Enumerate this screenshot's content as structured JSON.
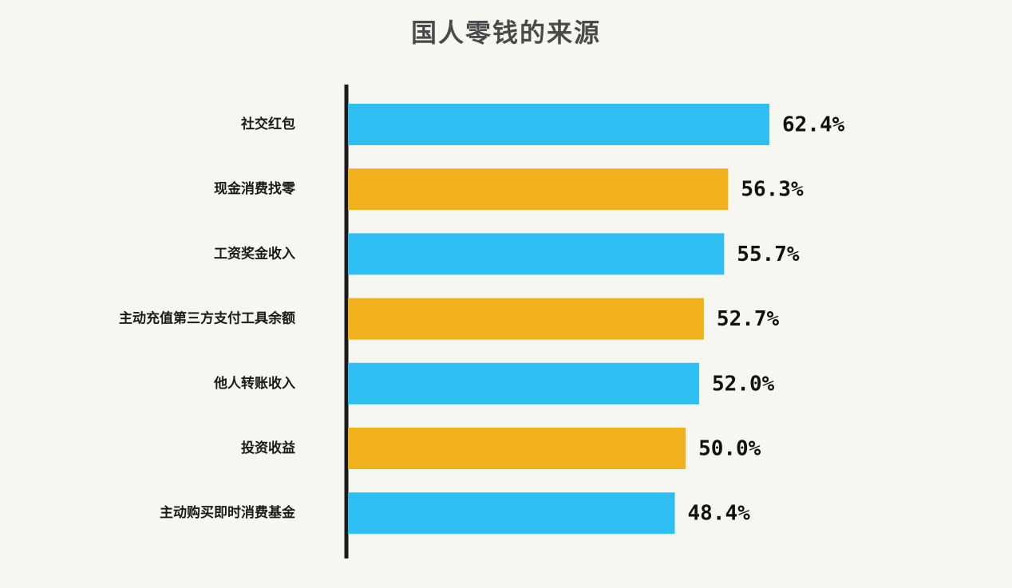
{
  "chart_data": {
    "type": "bar",
    "orientation": "horizontal",
    "title": "国人零钱的来源",
    "categories": [
      "社交红包",
      "现金消费找零",
      "工资奖金收入",
      "主动充值第三方支付工具余额",
      "他人转账收入",
      "投资收益",
      "主动购买即时消费基金"
    ],
    "values": [
      62.4,
      56.3,
      55.7,
      52.7,
      52.0,
      50.0,
      48.4
    ],
    "value_labels": [
      "62.4%",
      "56.3%",
      "55.7%",
      "52.7%",
      "52.0%",
      "50.0%",
      "48.4%"
    ],
    "unit": "%",
    "bar_colors": [
      "#2ebef2",
      "#f0b11c",
      "#2ebef2",
      "#f0b11c",
      "#2ebef2",
      "#f0b11c",
      "#2ebef2"
    ],
    "axis_color": "#1a1a1a",
    "grid": false,
    "legend": "none",
    "xlim": [
      0,
      62.4
    ]
  }
}
